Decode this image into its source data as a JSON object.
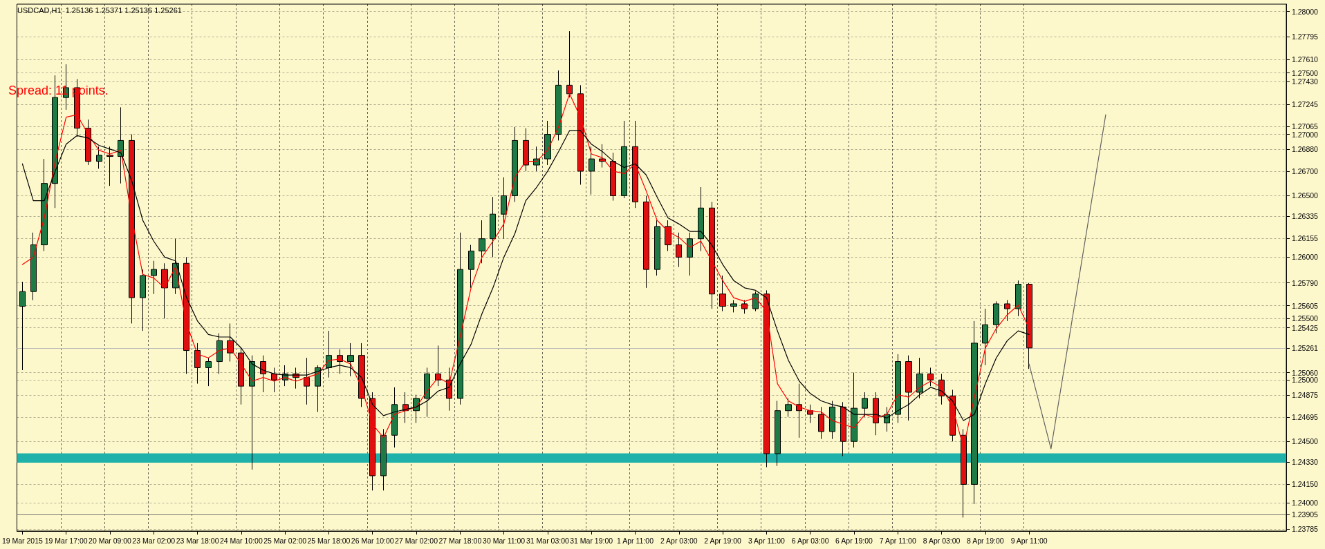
{
  "chart_data": {
    "type": "candlestick",
    "title": "USDCAD,H1  1.25136 1.25371 1.25136 1.25261",
    "annotations": [
      "Spread: 11 points."
    ],
    "categories": [
      "19 Mar 2015",
      null,
      null,
      null,
      "19 Mar 17:00",
      null,
      null,
      null,
      "20 Mar 09:00",
      null,
      null,
      null,
      "23 Mar 02:00",
      null,
      null,
      null,
      "23 Mar 18:00",
      null,
      null,
      null,
      "24 Mar 10:00",
      null,
      null,
      null,
      "25 Mar 02:00",
      null,
      null,
      null,
      "25 Mar 18:00",
      null,
      null,
      null,
      "26 Mar 10:00",
      null,
      null,
      null,
      "27 Mar 02:00",
      null,
      null,
      null,
      "27 Mar 18:00",
      null,
      null,
      null,
      "30 Mar 11:00",
      null,
      null,
      null,
      "31 Mar 03:00",
      null,
      null,
      null,
      "31 Mar 19:00",
      null,
      null,
      null,
      "1 Apr 11:00",
      null,
      null,
      null,
      "2 Apr 03:00",
      null,
      null,
      null,
      "2 Apr 19:00",
      null,
      null,
      null,
      "3 Apr 11:00",
      null,
      null,
      null,
      "6 Apr 03:00",
      null,
      null,
      null,
      "6 Apr 19:00",
      null,
      null,
      null,
      "7 Apr 11:00",
      null,
      null,
      null,
      "8 Apr 03:00",
      null,
      null,
      null,
      "8 Apr 19:00",
      null,
      null,
      null,
      "9 Apr 11:00",
      null,
      null,
      null,
      null,
      null,
      null,
      null,
      null,
      null,
      null,
      null,
      null,
      null,
      null,
      null,
      null,
      null,
      null,
      null,
      null,
      null,
      null,
      null
    ],
    "colors": [
      "#1e7b45",
      "#1e7b45",
      "#1e7b45",
      "#1e7b45",
      "#1e7b45",
      "#e01010",
      "#e01010",
      "#1e7b45",
      "#e01010",
      "#1e7b45",
      "#e01010",
      "#1e7b45",
      "#1e7b45",
      "#e01010",
      "#1e7b45",
      "#e01010",
      "#e01010",
      "#1e7b45",
      "#1e7b45",
      "#e01010",
      "#e01010",
      "#1e7b45",
      "#e01010",
      "#e01010",
      "#1e7b45",
      "#e01010",
      "#e01010",
      "#1e7b45",
      "#1e7b45",
      "#e01010",
      "#1e7b45",
      "#e01010",
      "#e01010",
      "#1e7b45",
      "#1e7b45",
      "#e01010",
      "#1e7b45",
      "#1e7b45",
      "#e01010",
      "#e01010",
      "#1e7b45",
      "#1e7b45",
      "#1e7b45",
      "#1e7b45",
      "#1e7b45",
      "#1e7b45",
      "#e01010",
      "#1e7b45",
      "#1e7b45",
      "#1e7b45",
      "#e01010",
      "#e01010",
      "#1e7b45",
      "#e01010",
      "#e01010",
      "#1e7b45",
      "#e01010",
      "#e01010",
      "#1e7b45",
      "#e01010",
      "#e01010",
      "#1e7b45",
      "#1e7b45",
      "#e01010",
      "#e01010",
      "#1e7b45",
      "#e01010",
      "#1e7b45",
      "#e01010",
      "#1e7b45",
      "#1e7b45",
      "#e01010",
      "#e01010",
      "#e01010",
      "#1e7b45",
      "#e01010",
      "#1e7b45",
      "#1e7b45",
      "#e01010",
      "#1e7b45",
      "#1e7b45",
      "#e01010",
      "#1e7b45",
      "#e01010",
      "#e01010",
      "#e01010",
      "#e01010",
      "#1e7b45",
      "#1e7b45",
      "#1e7b45",
      "#e01010",
      "#1e7b45",
      "#e01010",
      null,
      null,
      null,
      null,
      null,
      null,
      null,
      null,
      null,
      null,
      null,
      null,
      null,
      null,
      null,
      null,
      null,
      null,
      null,
      null,
      null,
      null,
      null
    ],
    "ohlc": [
      [
        1.256,
        1.258,
        1.2508,
        1.2572
      ],
      [
        1.2572,
        1.262,
        1.2565,
        1.261
      ],
      [
        1.261,
        1.268,
        1.2605,
        1.266
      ],
      [
        1.266,
        1.2748,
        1.264,
        1.273
      ],
      [
        1.273,
        1.2757,
        1.272,
        1.2738
      ],
      [
        1.2738,
        1.2745,
        1.2698,
        1.2705
      ],
      [
        1.2705,
        1.2712,
        1.2675,
        1.2678
      ],
      [
        1.2678,
        1.269,
        1.2672,
        1.2683
      ],
      [
        1.2683,
        1.269,
        1.2658,
        1.2682
      ],
      [
        1.2682,
        1.2722,
        1.266,
        1.2695
      ],
      [
        1.2695,
        1.27,
        1.2546,
        1.2567
      ],
      [
        1.2567,
        1.259,
        1.254,
        1.2585
      ],
      [
        1.2585,
        1.2597,
        1.257,
        1.259
      ],
      [
        1.259,
        1.2595,
        1.255,
        1.2575
      ],
      [
        1.2575,
        1.2615,
        1.257,
        1.2595
      ],
      [
        1.2595,
        1.26,
        1.2505,
        1.2524
      ],
      [
        1.2524,
        1.253,
        1.2497,
        1.251
      ],
      [
        1.251,
        1.2518,
        1.2495,
        1.2515
      ],
      [
        1.2515,
        1.2538,
        1.2505,
        1.2532
      ],
      [
        1.2532,
        1.2546,
        1.2515,
        1.2522
      ],
      [
        1.2522,
        1.2526,
        1.248,
        1.2495
      ],
      [
        1.2495,
        1.252,
        1.2427,
        1.2515
      ],
      [
        1.2515,
        1.252,
        1.249,
        1.2505
      ],
      [
        1.2505,
        1.251,
        1.249,
        1.25
      ],
      [
        1.25,
        1.2512,
        1.2495,
        1.2505
      ],
      [
        1.2505,
        1.251,
        1.2493,
        1.2502
      ],
      [
        1.2502,
        1.2518,
        1.248,
        1.2495
      ],
      [
        1.2495,
        1.2512,
        1.2474,
        1.251
      ],
      [
        1.251,
        1.254,
        1.2502,
        1.252
      ],
      [
        1.252,
        1.2525,
        1.2505,
        1.2515
      ],
      [
        1.2515,
        1.253,
        1.2503,
        1.252
      ],
      [
        1.252,
        1.253,
        1.2478,
        1.2485
      ],
      [
        1.2485,
        1.249,
        1.241,
        1.2422
      ],
      [
        1.2422,
        1.246,
        1.241,
        1.2455
      ],
      [
        1.2455,
        1.2494,
        1.2445,
        1.248
      ],
      [
        1.248,
        1.249,
        1.2465,
        1.2475
      ],
      [
        1.2475,
        1.2488,
        1.2465,
        1.2485
      ],
      [
        1.2485,
        1.251,
        1.247,
        1.2505
      ],
      [
        1.2505,
        1.2528,
        1.2495,
        1.25
      ],
      [
        1.25,
        1.251,
        1.2475,
        1.2485
      ],
      [
        1.2485,
        1.262,
        1.248,
        1.259
      ],
      [
        1.259,
        1.261,
        1.2575,
        1.2605
      ],
      [
        1.2605,
        1.263,
        1.2595,
        1.2615
      ],
      [
        1.2615,
        1.2649,
        1.26,
        1.2635
      ],
      [
        1.2635,
        1.2665,
        1.2615,
        1.265
      ],
      [
        1.265,
        1.2706,
        1.2645,
        1.2695
      ],
      [
        1.2695,
        1.2705,
        1.267,
        1.2675
      ],
      [
        1.2675,
        1.269,
        1.267,
        1.268
      ],
      [
        1.268,
        1.2711,
        1.2675,
        1.27
      ],
      [
        1.27,
        1.2752,
        1.2695,
        1.274
      ],
      [
        1.274,
        1.2784,
        1.273,
        1.2733
      ],
      [
        1.2733,
        1.274,
        1.2659,
        1.267
      ],
      [
        1.267,
        1.269,
        1.2651,
        1.268
      ],
      [
        1.268,
        1.2692,
        1.2673,
        1.2678
      ],
      [
        1.2678,
        1.2685,
        1.2646,
        1.265
      ],
      [
        1.265,
        1.2711,
        1.2648,
        1.269
      ],
      [
        1.269,
        1.2711,
        1.264,
        1.2645
      ],
      [
        1.2645,
        1.265,
        1.2575,
        1.259
      ],
      [
        1.259,
        1.263,
        1.2585,
        1.2625
      ],
      [
        1.2625,
        1.263,
        1.2605,
        1.261
      ],
      [
        1.261,
        1.262,
        1.2592,
        1.26
      ],
      [
        1.26,
        1.262,
        1.2585,
        1.2615
      ],
      [
        1.2615,
        1.2657,
        1.2605,
        1.264
      ],
      [
        1.264,
        1.2645,
        1.2558,
        1.257
      ],
      [
        1.257,
        1.2585,
        1.2556,
        1.256
      ],
      [
        1.256,
        1.2565,
        1.2555,
        1.2562
      ],
      [
        1.2562,
        1.2565,
        1.2554,
        1.2558
      ],
      [
        1.2558,
        1.2572,
        1.2556,
        1.257
      ],
      [
        1.257,
        1.2573,
        1.2429,
        1.244
      ],
      [
        1.244,
        1.2483,
        1.243,
        1.2475
      ],
      [
        1.2475,
        1.2485,
        1.247,
        1.248
      ],
      [
        1.248,
        1.2497,
        1.2453,
        1.2475
      ],
      [
        1.2475,
        1.248,
        1.2465,
        1.2472
      ],
      [
        1.2472,
        1.2478,
        1.2452,
        1.2458
      ],
      [
        1.2458,
        1.2483,
        1.2452,
        1.2478
      ],
      [
        1.2478,
        1.2482,
        1.2438,
        1.245
      ],
      [
        1.245,
        1.2506,
        1.2445,
        1.2477
      ],
      [
        1.2477,
        1.249,
        1.247,
        1.2485
      ],
      [
        1.2485,
        1.249,
        1.2455,
        1.2465
      ],
      [
        1.2465,
        1.2478,
        1.2458,
        1.2472
      ],
      [
        1.2472,
        1.2521,
        1.2465,
        1.2515
      ],
      [
        1.2515,
        1.252,
        1.2467,
        1.249
      ],
      [
        1.249,
        1.2518,
        1.2485,
        1.2505
      ],
      [
        1.2505,
        1.251,
        1.2495,
        1.25
      ],
      [
        1.25,
        1.2505,
        1.248,
        1.2487
      ],
      [
        1.2487,
        1.2492,
        1.245,
        1.2455
      ],
      [
        1.2455,
        1.246,
        1.2388,
        1.2415
      ],
      [
        1.2415,
        1.2548,
        1.2399,
        1.253
      ],
      [
        1.253,
        1.2558,
        1.2512,
        1.2545
      ],
      [
        1.2545,
        1.2564,
        1.2538,
        1.2562
      ],
      [
        1.2562,
        1.2565,
        1.2548,
        1.2558
      ],
      [
        1.2558,
        1.2581,
        1.2552,
        1.2578
      ],
      [
        1.2578,
        1.2579,
        1.2509,
        1.25261
      ],
      null,
      null,
      null,
      null,
      null,
      null,
      null,
      null,
      null,
      null,
      null,
      null,
      null,
      null,
      null,
      null,
      null,
      null,
      null,
      null,
      null,
      null,
      null
    ],
    "series": [
      {
        "type": "line",
        "color": "#ff0000",
        "values": [
          1.2594,
          1.26,
          1.2632,
          1.2678,
          1.2714,
          1.2716,
          1.27,
          1.2687,
          1.2684,
          1.2687,
          1.2632,
          1.2586,
          1.2583,
          1.2575,
          1.2592,
          1.2546,
          1.2521,
          1.2518,
          1.2524,
          1.2526,
          1.2513,
          1.2499,
          1.2502,
          1.2499,
          1.2502,
          1.2499,
          1.2502,
          1.2505,
          1.2516,
          1.2517,
          1.2513,
          1.2494,
          1.2464,
          1.2453,
          1.2472,
          1.2475,
          1.2478,
          1.2491,
          1.2502,
          1.2497,
          1.2535,
          1.2575,
          1.26,
          1.2613,
          1.2627,
          1.2665,
          1.2678,
          1.2678,
          1.2687,
          1.2706,
          1.2733,
          1.2714,
          1.2684,
          1.2681,
          1.267,
          1.2668,
          1.2676,
          1.2654,
          1.263,
          1.2621,
          1.2616,
          1.2608,
          1.2613,
          1.2597,
          1.2581,
          1.2567,
          1.2564,
          1.2567,
          1.2556,
          1.2497,
          1.2483,
          1.2478,
          1.2475,
          1.2474,
          1.2467,
          1.2464,
          1.2461,
          1.2472,
          1.2469,
          1.2472,
          1.2488,
          1.2486,
          1.2494,
          1.2499,
          1.2494,
          1.2478,
          1.2445,
          1.2486,
          1.2526,
          1.2542,
          1.2553,
          1.2561,
          1.2542,
          null,
          null,
          null,
          null,
          null,
          null,
          null,
          null,
          null,
          null,
          null,
          null,
          null,
          null,
          null,
          null,
          null,
          null,
          null,
          null,
          null,
          null,
          null
        ]
      },
      {
        "type": "line",
        "color": "#000000",
        "values": [
          1.2676,
          1.2646,
          1.2646,
          1.267,
          1.2692,
          1.2699,
          1.2697,
          1.2691,
          1.2688,
          1.2685,
          1.2662,
          1.263,
          1.2613,
          1.26,
          1.2597,
          1.2567,
          1.2548,
          1.2537,
          1.2535,
          1.2535,
          1.2526,
          1.2513,
          1.2508,
          1.2505,
          1.2504,
          1.2504,
          1.2504,
          1.2507,
          1.251,
          1.2512,
          1.251,
          1.2502,
          1.248,
          1.2471,
          1.2474,
          1.2476,
          1.2478,
          1.2483,
          1.2491,
          1.2494,
          1.2513,
          1.2529,
          1.2554,
          1.2575,
          1.26,
          1.2619,
          1.2646,
          1.2657,
          1.267,
          1.2686,
          1.2703,
          1.2703,
          1.2692,
          1.2686,
          1.2678,
          1.2673,
          1.2676,
          1.2667,
          1.2649,
          1.2632,
          1.2627,
          1.2621,
          1.2621,
          1.261,
          1.2594,
          1.2581,
          1.2575,
          1.2573,
          1.2567,
          1.254,
          1.2516,
          1.2499,
          1.2489,
          1.2483,
          1.248,
          1.2478,
          1.2472,
          1.2472,
          1.2472,
          1.2469,
          1.2475,
          1.248,
          1.2488,
          1.2494,
          1.2491,
          1.2483,
          1.2467,
          1.2472,
          1.2497,
          1.2518,
          1.2532,
          1.254,
          1.2537,
          null,
          null,
          null,
          null,
          null,
          null,
          null,
          null,
          null,
          null,
          null,
          null,
          null,
          null,
          null,
          null,
          null,
          null,
          null,
          null,
          null,
          null,
          null
        ]
      },
      {
        "type": "line",
        "color": "#606060",
        "values": [
          null,
          null,
          null,
          null,
          null,
          null,
          null,
          null,
          null,
          null,
          null,
          null,
          null,
          null,
          null,
          null,
          null,
          null,
          null,
          null,
          null,
          null,
          null,
          null,
          null,
          null,
          null,
          null,
          null,
          null,
          null,
          null,
          null,
          null,
          null,
          null,
          null,
          null,
          null,
          null,
          null,
          null,
          null,
          null,
          null,
          null,
          null,
          null,
          null,
          null,
          null,
          null,
          null,
          null,
          null,
          null,
          null,
          null,
          null,
          null,
          null,
          null,
          null,
          null,
          null,
          null,
          null,
          null,
          null,
          null,
          null,
          null,
          null,
          null,
          null,
          null,
          null,
          null,
          null,
          null,
          null,
          null,
          null,
          null,
          null,
          null,
          null,
          null,
          null,
          null,
          null,
          null,
          1.2513,
          null,
          1.2444,
          null,
          null,
          null,
          null,
          1.2716,
          null,
          null,
          null,
          null,
          null,
          null,
          null,
          null,
          null,
          null,
          null,
          null,
          null,
          null,
          null,
          null
        ]
      }
    ],
    "ylim": [
      1.2377,
      1.2806
    ],
    "yticks": [
      {
        "value": 1.28,
        "label": "1.28000"
      },
      {
        "value": 1.27795,
        "label": "1.27795"
      },
      {
        "value": 1.2761,
        "label": "1.27610"
      },
      {
        "value": 1.275,
        "label": "1.27500"
      },
      {
        "value": 1.2743,
        "label": "1.27430"
      },
      {
        "value": 1.27245,
        "label": "1.27245"
      },
      {
        "value": 1.27065,
        "label": "1.27065"
      },
      {
        "value": 1.27,
        "label": "1.27000"
      },
      {
        "value": 1.2688,
        "label": "1.26880"
      },
      {
        "value": 1.267,
        "label": "1.26700"
      },
      {
        "value": 1.265,
        "label": "1.26500"
      },
      {
        "value": 1.26335,
        "label": "1.26335"
      },
      {
        "value": 1.26155,
        "label": "1.26155"
      },
      {
        "value": 1.26,
        "label": "1.26000"
      },
      {
        "value": 1.2579,
        "label": "1.25790"
      },
      {
        "value": 1.25605,
        "label": "1.25605"
      },
      {
        "value": 1.255,
        "label": "1.25500"
      },
      {
        "value": 1.25425,
        "label": "1.25425"
      },
      {
        "value": 1.25261,
        "label": "1.25261"
      },
      {
        "value": 1.2506,
        "label": "1.25060"
      },
      {
        "value": 1.25,
        "label": "1.25000"
      },
      {
        "value": 1.24875,
        "label": "1.24875"
      },
      {
        "value": 1.24695,
        "label": "1.24695"
      },
      {
        "value": 1.245,
        "label": "1.24500"
      },
      {
        "value": 1.2433,
        "label": "1.24330"
      },
      {
        "value": 1.2415,
        "label": "1.24150"
      },
      {
        "value": 1.24,
        "label": "1.24000"
      },
      {
        "value": 1.23905,
        "label": "1.23905"
      },
      {
        "value": 1.23785,
        "label": "1.23785"
      }
    ],
    "ref_lines": [
      {
        "axis": "y",
        "value": 1.25261,
        "color": "#b8b8b8"
      },
      {
        "axis": "y",
        "value": 1.23905,
        "color": "#707070"
      }
    ],
    "bands": [
      {
        "axis": "y",
        "from": 1.24327,
        "to": 1.24403,
        "color": "#20b2aa"
      }
    ],
    "grid": true,
    "marker": "none"
  }
}
